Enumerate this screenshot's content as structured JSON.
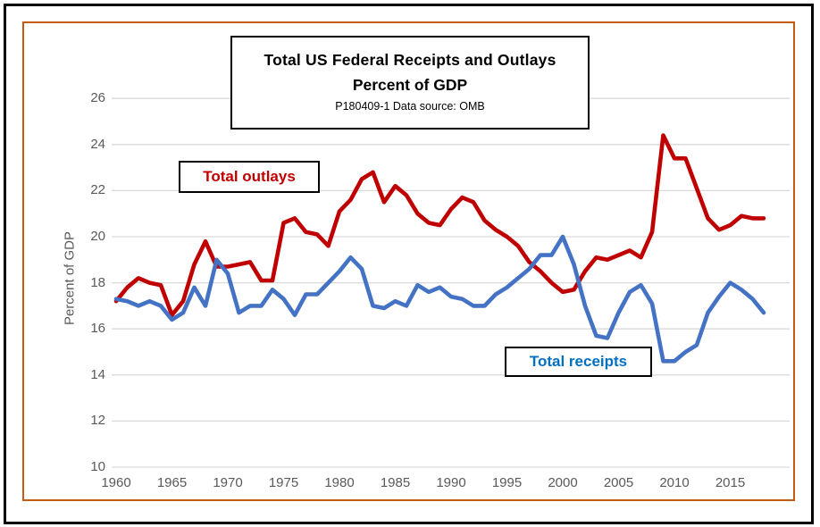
{
  "colors": {
    "outlays_red": "#C00000",
    "receipts_blue": "#4472C4",
    "receipts_label_blue": "#0070C0",
    "grid": "#D9D9D9",
    "axis_text": "#595959",
    "frame_orange": "#C55A11",
    "frame_black": "#000000"
  },
  "title": {
    "line1": "Total US Federal Receipts and Outlays",
    "line2": "Percent of GDP",
    "note": "P180409-1 Data source: OMB"
  },
  "labels": {
    "outlays": "Total outlays",
    "receipts": "Total receipts",
    "y_axis": "Percent of GDP"
  },
  "chart_data": {
    "type": "line",
    "title": "Total US Federal Receipts and Outlays",
    "subtitle": "Percent of GDP",
    "note": "P180409-1 Data source: OMB",
    "xlabel": "",
    "ylabel": "Percent of GDP",
    "ylim": [
      10,
      26
    ],
    "ytick_step": 2,
    "y_ticks": [
      10,
      12,
      14,
      16,
      18,
      20,
      22,
      24,
      26
    ],
    "x_ticks": [
      1960,
      1965,
      1970,
      1975,
      1980,
      1985,
      1990,
      1995,
      2000,
      2005,
      2010,
      2015
    ],
    "grid": "horizontal",
    "legend_position": "inline-text-boxes",
    "x": [
      1960,
      1961,
      1962,
      1963,
      1964,
      1965,
      1966,
      1967,
      1968,
      1969,
      1970,
      1971,
      1972,
      1973,
      1974,
      1975,
      1976,
      1977,
      1978,
      1979,
      1980,
      1981,
      1982,
      1983,
      1984,
      1985,
      1986,
      1987,
      1988,
      1989,
      1990,
      1991,
      1992,
      1993,
      1994,
      1995,
      1996,
      1997,
      1998,
      1999,
      2000,
      2001,
      2002,
      2003,
      2004,
      2005,
      2006,
      2007,
      2008,
      2009,
      2010,
      2011,
      2012,
      2013,
      2014,
      2015,
      2016,
      2017,
      2018
    ],
    "series": [
      {
        "name": "Total outlays",
        "color": "#C00000",
        "values": [
          17.2,
          17.8,
          18.2,
          18.0,
          17.9,
          16.6,
          17.2,
          18.8,
          19.8,
          18.7,
          18.7,
          18.8,
          18.9,
          18.1,
          18.1,
          20.6,
          20.8,
          20.2,
          20.1,
          19.6,
          21.1,
          21.6,
          22.5,
          22.8,
          21.5,
          22.2,
          21.8,
          21.0,
          20.6,
          20.5,
          21.2,
          21.7,
          21.5,
          20.7,
          20.3,
          20.0,
          19.6,
          18.9,
          18.5,
          18.0,
          17.6,
          17.7,
          18.5,
          19.1,
          19.0,
          19.2,
          19.4,
          19.1,
          20.2,
          24.4,
          23.4,
          23.4,
          22.1,
          20.8,
          20.3,
          20.5,
          20.9,
          20.8,
          20.8
        ]
      },
      {
        "name": "Total receipts",
        "color": "#4472C4",
        "values": [
          17.3,
          17.2,
          17.0,
          17.2,
          17.0,
          16.4,
          16.7,
          17.8,
          17.0,
          19.0,
          18.4,
          16.7,
          17.0,
          17.0,
          17.7,
          17.3,
          16.6,
          17.5,
          17.5,
          18.0,
          18.5,
          19.1,
          18.6,
          17.0,
          16.9,
          17.2,
          17.0,
          17.9,
          17.6,
          17.8,
          17.4,
          17.3,
          17.0,
          17.0,
          17.5,
          17.8,
          18.2,
          18.6,
          19.2,
          19.2,
          20.0,
          18.8,
          17.0,
          15.7,
          15.6,
          16.7,
          17.6,
          17.9,
          17.1,
          14.6,
          14.6,
          15.0,
          15.3,
          16.7,
          17.4,
          18.0,
          17.7,
          17.3,
          16.7
        ]
      }
    ]
  }
}
